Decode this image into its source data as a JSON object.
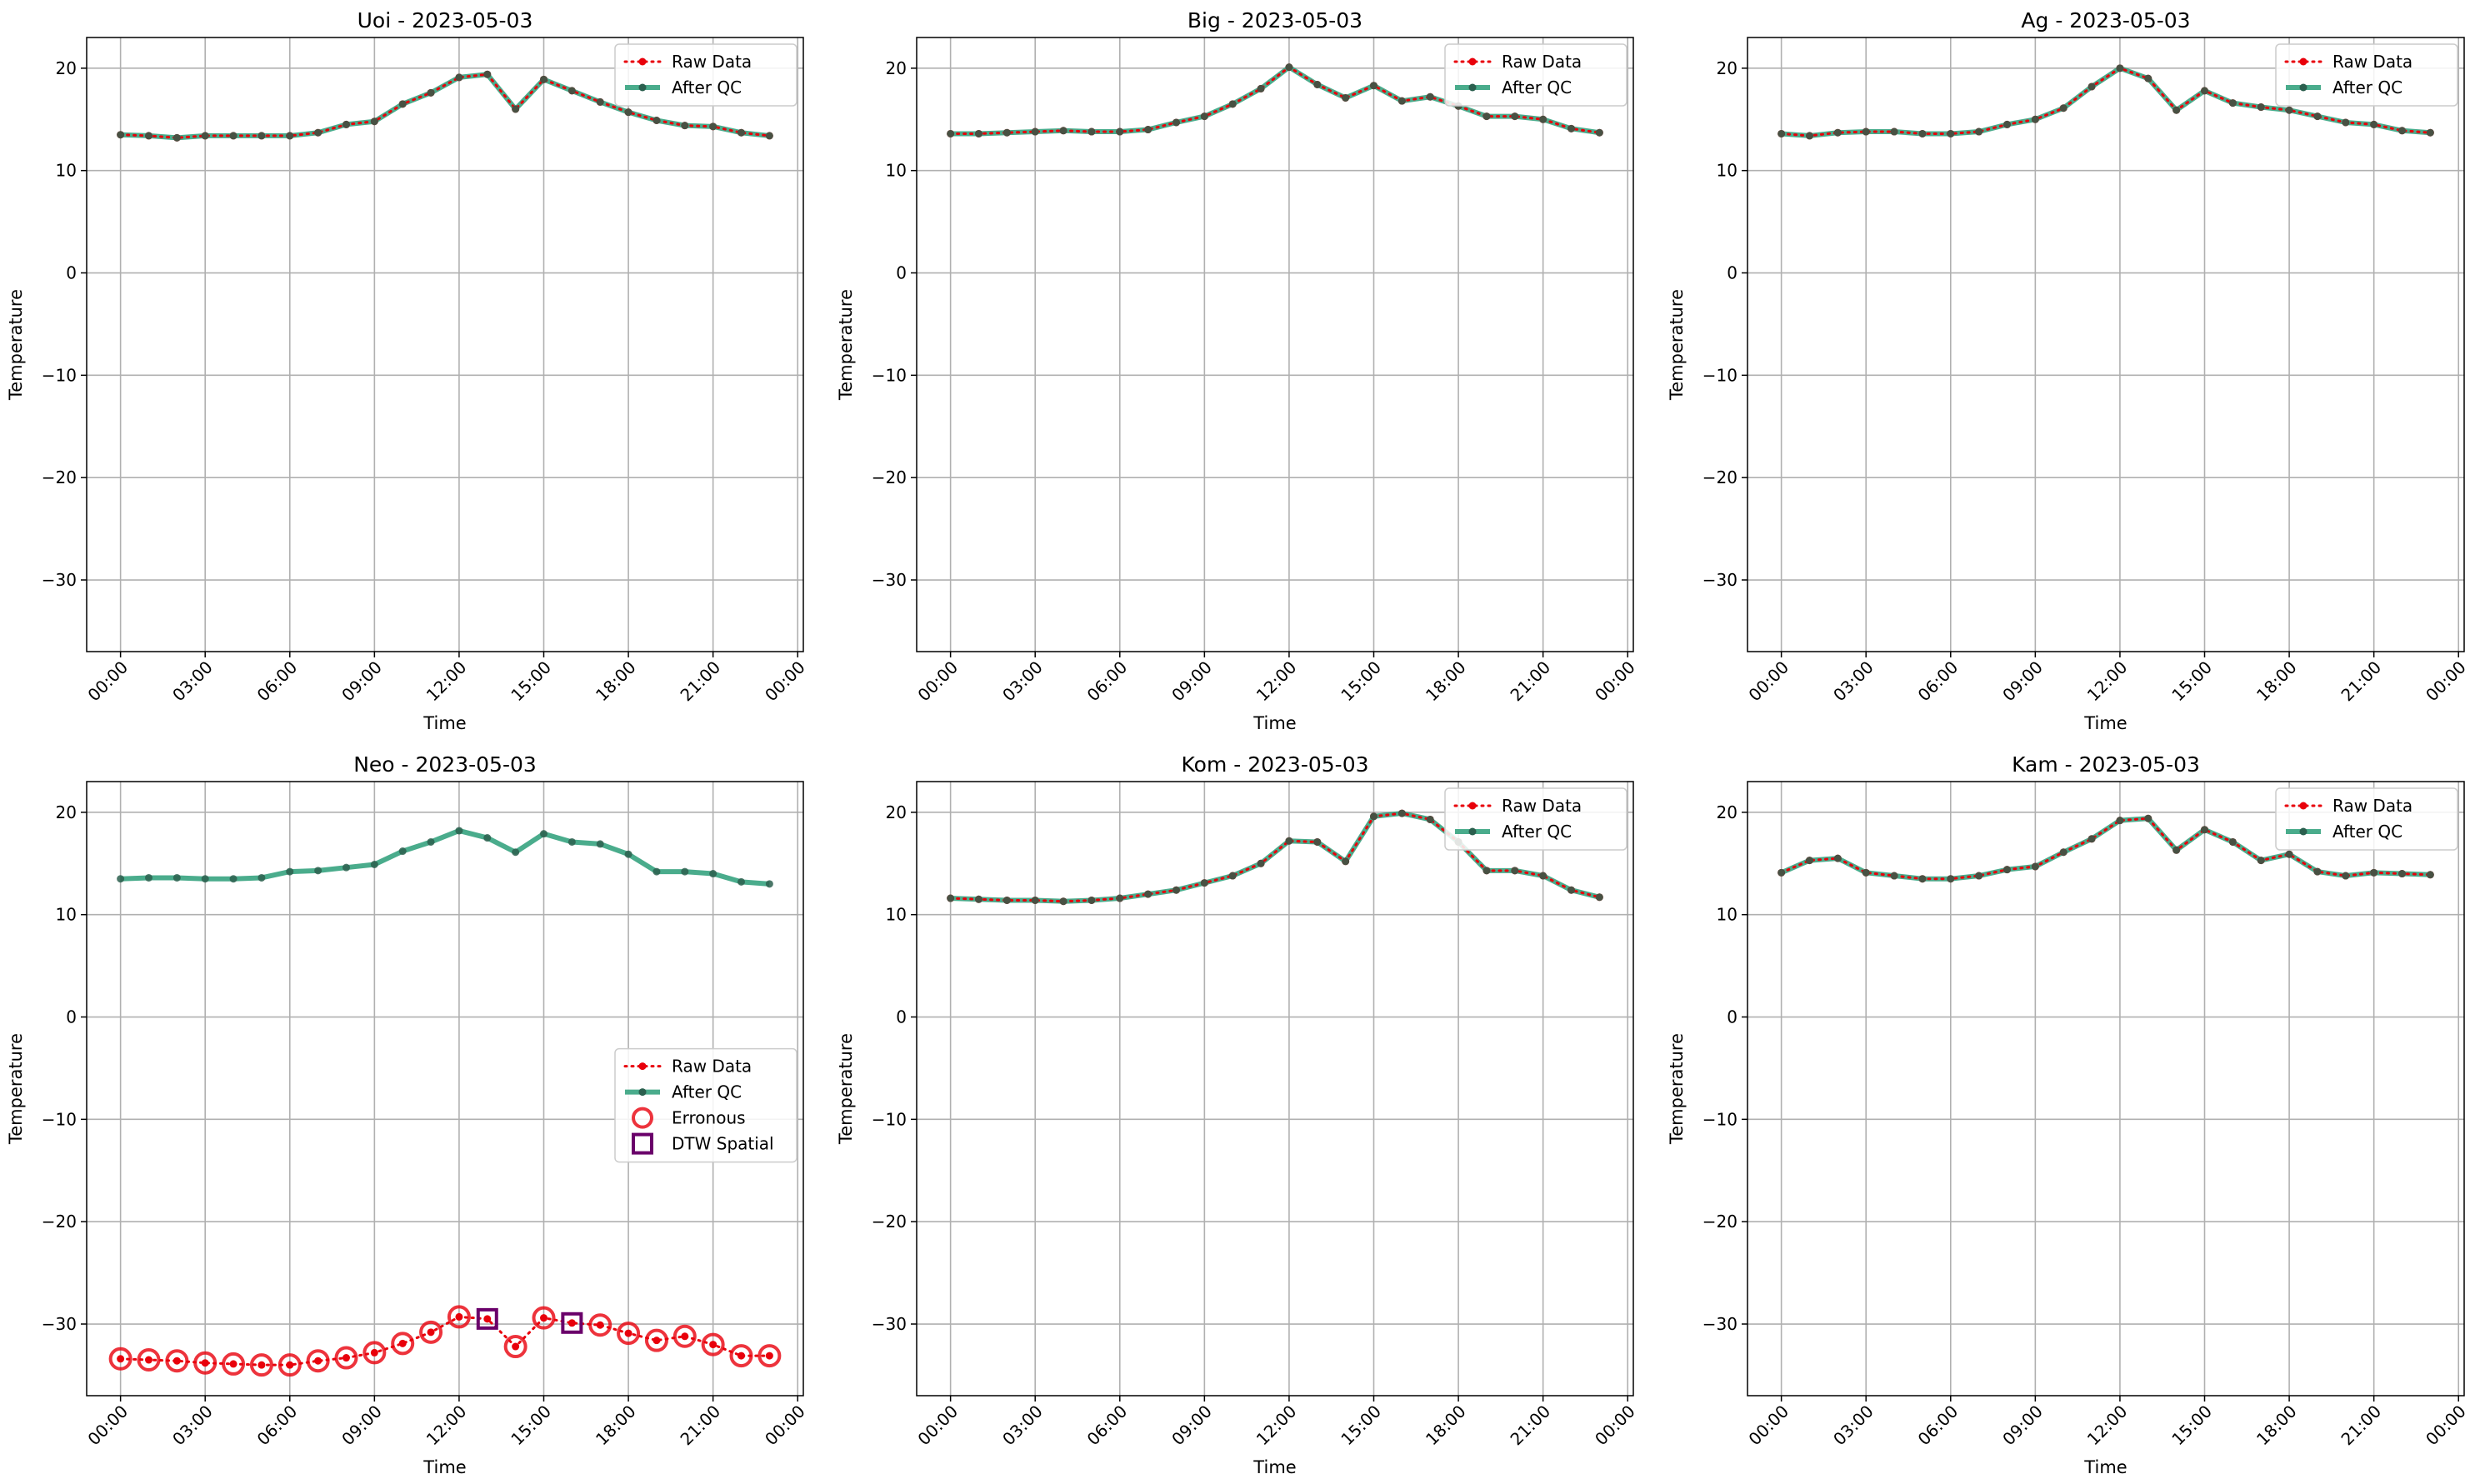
{
  "colors": {
    "raw": "#e8000b",
    "after_qc": "#2a9d78",
    "after_qc_marker": "#2b5f4e",
    "erroneous": "#e8000b",
    "dtw_spatial": "#6a006a",
    "grid": "#b0b0b0",
    "axis": "#000000"
  },
  "legend_labels": {
    "raw": "Raw Data",
    "after_qc": "After QC",
    "erroneous": "Erronous",
    "dtw": "DTW Spatial"
  },
  "chart_data": [
    {
      "type": "line",
      "title": "Uoi - 2023-05-03",
      "xlabel": "Time",
      "ylabel": "Temperature",
      "xlim": [
        -1.2,
        24.2
      ],
      "ylim": [
        -37,
        23
      ],
      "yticks": [
        -30,
        -20,
        -10,
        0,
        10,
        20
      ],
      "ytick_labels": [
        "−30",
        "−20",
        "−10",
        "0",
        "10",
        "20"
      ],
      "xticks": [
        0,
        3,
        6,
        9,
        12,
        15,
        18,
        21,
        24
      ],
      "xtick_labels": [
        "00:00",
        "03:00",
        "06:00",
        "09:00",
        "12:00",
        "15:00",
        "18:00",
        "21:00",
        "00:00"
      ],
      "grid": true,
      "legend": "top-right",
      "x": [
        0,
        1,
        2,
        3,
        4,
        5,
        6,
        7,
        8,
        9,
        10,
        11,
        12,
        13,
        14,
        15,
        16,
        17,
        18,
        19,
        20,
        21,
        22,
        23
      ],
      "series": [
        {
          "name": "Raw Data",
          "values": [
            13.5,
            13.4,
            13.2,
            13.4,
            13.4,
            13.4,
            13.4,
            13.7,
            14.5,
            14.8,
            16.5,
            17.6,
            19.1,
            19.4,
            16.0,
            18.9,
            17.8,
            16.7,
            15.7,
            14.9,
            14.4,
            14.3,
            13.7,
            13.4
          ]
        },
        {
          "name": "After QC",
          "values": [
            13.5,
            13.4,
            13.2,
            13.4,
            13.4,
            13.4,
            13.4,
            13.7,
            14.5,
            14.8,
            16.5,
            17.6,
            19.1,
            19.4,
            16.0,
            18.9,
            17.8,
            16.7,
            15.7,
            14.9,
            14.4,
            14.3,
            13.7,
            13.4
          ]
        }
      ]
    },
    {
      "type": "line",
      "title": "Big - 2023-05-03",
      "xlabel": "Time",
      "ylabel": "Temperature",
      "xlim": [
        -1.2,
        24.2
      ],
      "ylim": [
        -37,
        23
      ],
      "yticks": [
        -30,
        -20,
        -10,
        0,
        10,
        20
      ],
      "ytick_labels": [
        "−30",
        "−20",
        "−10",
        "0",
        "10",
        "20"
      ],
      "xticks": [
        0,
        3,
        6,
        9,
        12,
        15,
        18,
        21,
        24
      ],
      "xtick_labels": [
        "00:00",
        "03:00",
        "06:00",
        "09:00",
        "12:00",
        "15:00",
        "18:00",
        "21:00",
        "00:00"
      ],
      "grid": true,
      "legend": "top-right",
      "x": [
        0,
        1,
        2,
        3,
        4,
        5,
        6,
        7,
        8,
        9,
        10,
        11,
        12,
        13,
        14,
        15,
        16,
        17,
        18,
        19,
        20,
        21,
        22,
        23
      ],
      "series": [
        {
          "name": "Raw Data",
          "values": [
            13.6,
            13.6,
            13.7,
            13.8,
            13.9,
            13.8,
            13.8,
            14.0,
            14.7,
            15.3,
            16.5,
            18.0,
            20.1,
            18.4,
            17.1,
            18.3,
            16.8,
            17.2,
            16.3,
            15.3,
            15.3,
            15.0,
            14.1,
            13.7
          ]
        },
        {
          "name": "After QC",
          "values": [
            13.6,
            13.6,
            13.7,
            13.8,
            13.9,
            13.8,
            13.8,
            14.0,
            14.7,
            15.3,
            16.5,
            18.0,
            20.1,
            18.4,
            17.1,
            18.3,
            16.8,
            17.2,
            16.3,
            15.3,
            15.3,
            15.0,
            14.1,
            13.7
          ]
        }
      ]
    },
    {
      "type": "line",
      "title": "Ag - 2023-05-03",
      "xlabel": "Time",
      "ylabel": "Temperature",
      "xlim": [
        -1.2,
        24.2
      ],
      "ylim": [
        -37,
        23
      ],
      "yticks": [
        -30,
        -20,
        -10,
        0,
        10,
        20
      ],
      "ytick_labels": [
        "−30",
        "−20",
        "−10",
        "0",
        "10",
        "20"
      ],
      "xticks": [
        0,
        3,
        6,
        9,
        12,
        15,
        18,
        21,
        24
      ],
      "xtick_labels": [
        "00:00",
        "03:00",
        "06:00",
        "09:00",
        "12:00",
        "15:00",
        "18:00",
        "21:00",
        "00:00"
      ],
      "grid": true,
      "legend": "top-right",
      "x": [
        0,
        1,
        2,
        3,
        4,
        5,
        6,
        7,
        8,
        9,
        10,
        11,
        12,
        13,
        14,
        15,
        16,
        17,
        18,
        19,
        20,
        21,
        22,
        23
      ],
      "series": [
        {
          "name": "Raw Data",
          "values": [
            13.6,
            13.4,
            13.7,
            13.8,
            13.8,
            13.6,
            13.6,
            13.8,
            14.5,
            15.0,
            16.1,
            18.2,
            20.0,
            19.0,
            15.9,
            17.8,
            16.6,
            16.2,
            15.9,
            15.3,
            14.7,
            14.5,
            13.9,
            13.7
          ]
        },
        {
          "name": "After QC",
          "values": [
            13.6,
            13.4,
            13.7,
            13.8,
            13.8,
            13.6,
            13.6,
            13.8,
            14.5,
            15.0,
            16.1,
            18.2,
            20.0,
            19.0,
            15.9,
            17.8,
            16.6,
            16.2,
            15.9,
            15.3,
            14.7,
            14.5,
            13.9,
            13.7
          ]
        }
      ]
    },
    {
      "type": "line",
      "title": "Neo - 2023-05-03",
      "xlabel": "Time",
      "ylabel": "Temperature",
      "xlim": [
        -1.2,
        24.2
      ],
      "ylim": [
        -37,
        23
      ],
      "yticks": [
        -30,
        -20,
        -10,
        0,
        10,
        20
      ],
      "ytick_labels": [
        "−30",
        "−20",
        "−10",
        "0",
        "10",
        "20"
      ],
      "xticks": [
        0,
        3,
        6,
        9,
        12,
        15,
        18,
        21,
        24
      ],
      "xtick_labels": [
        "00:00",
        "03:00",
        "06:00",
        "09:00",
        "12:00",
        "15:00",
        "18:00",
        "21:00",
        "00:00"
      ],
      "grid": true,
      "legend": "center-right",
      "x": [
        0,
        1,
        2,
        3,
        4,
        5,
        6,
        7,
        8,
        9,
        10,
        11,
        12,
        13,
        14,
        15,
        16,
        17,
        18,
        19,
        20,
        21,
        22,
        23
      ],
      "series": [
        {
          "name": "Raw Data",
          "values": [
            -33.4,
            -33.5,
            -33.6,
            -33.8,
            -33.9,
            -34.0,
            -34.0,
            -33.6,
            -33.3,
            -32.8,
            -31.9,
            -30.8,
            -29.3,
            -29.5,
            -32.2,
            -29.4,
            -29.9,
            -30.1,
            -30.9,
            -31.6,
            -31.2,
            -32.0,
            -33.1,
            -33.1
          ]
        },
        {
          "name": "After QC",
          "values": [
            13.5,
            13.6,
            13.6,
            13.5,
            13.5,
            13.6,
            14.2,
            14.3,
            14.6,
            14.9,
            16.2,
            17.1,
            18.2,
            17.5,
            16.1,
            17.9,
            17.1,
            16.9,
            15.9,
            14.2,
            14.2,
            14.0,
            13.2,
            13.0
          ]
        }
      ],
      "erroneous_x": [
        0,
        1,
        2,
        3,
        4,
        5,
        6,
        7,
        8,
        9,
        10,
        11,
        12,
        14,
        15,
        17,
        18,
        19,
        20,
        21,
        22,
        23
      ],
      "dtw_spatial_x": [
        13,
        16
      ]
    },
    {
      "type": "line",
      "title": "Kom - 2023-05-03",
      "xlabel": "Time",
      "ylabel": "Temperature",
      "xlim": [
        -1.2,
        24.2
      ],
      "ylim": [
        -37,
        23
      ],
      "yticks": [
        -30,
        -20,
        -10,
        0,
        10,
        20
      ],
      "ytick_labels": [
        "−30",
        "−20",
        "−10",
        "0",
        "10",
        "20"
      ],
      "xticks": [
        0,
        3,
        6,
        9,
        12,
        15,
        18,
        21,
        24
      ],
      "xtick_labels": [
        "00:00",
        "03:00",
        "06:00",
        "09:00",
        "12:00",
        "15:00",
        "18:00",
        "21:00",
        "00:00"
      ],
      "grid": true,
      "legend": "top-right",
      "x": [
        0,
        1,
        2,
        3,
        4,
        5,
        6,
        7,
        8,
        9,
        10,
        11,
        12,
        13,
        14,
        15,
        16,
        17,
        18,
        19,
        20,
        21,
        22,
        23
      ],
      "series": [
        {
          "name": "Raw Data",
          "values": [
            11.6,
            11.5,
            11.4,
            11.4,
            11.3,
            11.4,
            11.6,
            12.0,
            12.4,
            13.1,
            13.8,
            15.0,
            17.2,
            17.1,
            15.2,
            19.6,
            19.9,
            19.3,
            17.1,
            14.3,
            14.3,
            13.8,
            12.4,
            11.7
          ]
        },
        {
          "name": "After QC",
          "values": [
            11.6,
            11.5,
            11.4,
            11.4,
            11.3,
            11.4,
            11.6,
            12.0,
            12.4,
            13.1,
            13.8,
            15.0,
            17.2,
            17.1,
            15.2,
            19.6,
            19.9,
            19.3,
            17.1,
            14.3,
            14.3,
            13.8,
            12.4,
            11.7
          ]
        }
      ]
    },
    {
      "type": "line",
      "title": "Kam - 2023-05-03",
      "xlabel": "Time",
      "ylabel": "Temperature",
      "xlim": [
        -1.2,
        24.2
      ],
      "ylim": [
        -37,
        23
      ],
      "yticks": [
        -30,
        -20,
        -10,
        0,
        10,
        20
      ],
      "ytick_labels": [
        "−30",
        "−20",
        "−10",
        "0",
        "10",
        "20"
      ],
      "xticks": [
        0,
        3,
        6,
        9,
        12,
        15,
        18,
        21,
        24
      ],
      "xtick_labels": [
        "00:00",
        "03:00",
        "06:00",
        "09:00",
        "12:00",
        "15:00",
        "18:00",
        "21:00",
        "00:00"
      ],
      "grid": true,
      "legend": "top-right",
      "x": [
        0,
        1,
        2,
        3,
        4,
        5,
        6,
        7,
        8,
        9,
        10,
        11,
        12,
        13,
        14,
        15,
        16,
        17,
        18,
        19,
        20,
        21,
        22,
        23
      ],
      "series": [
        {
          "name": "Raw Data",
          "values": [
            14.1,
            15.3,
            15.5,
            14.1,
            13.8,
            13.5,
            13.5,
            13.8,
            14.4,
            14.7,
            16.1,
            17.4,
            19.2,
            19.4,
            16.3,
            18.3,
            17.1,
            15.3,
            15.9,
            14.2,
            13.8,
            14.1,
            14.0,
            13.9
          ]
        },
        {
          "name": "After QC",
          "values": [
            14.1,
            15.3,
            15.5,
            14.1,
            13.8,
            13.5,
            13.5,
            13.8,
            14.4,
            14.7,
            16.1,
            17.4,
            19.2,
            19.4,
            16.3,
            18.3,
            17.1,
            15.3,
            15.9,
            14.2,
            13.8,
            14.1,
            14.0,
            13.9
          ]
        }
      ]
    }
  ]
}
